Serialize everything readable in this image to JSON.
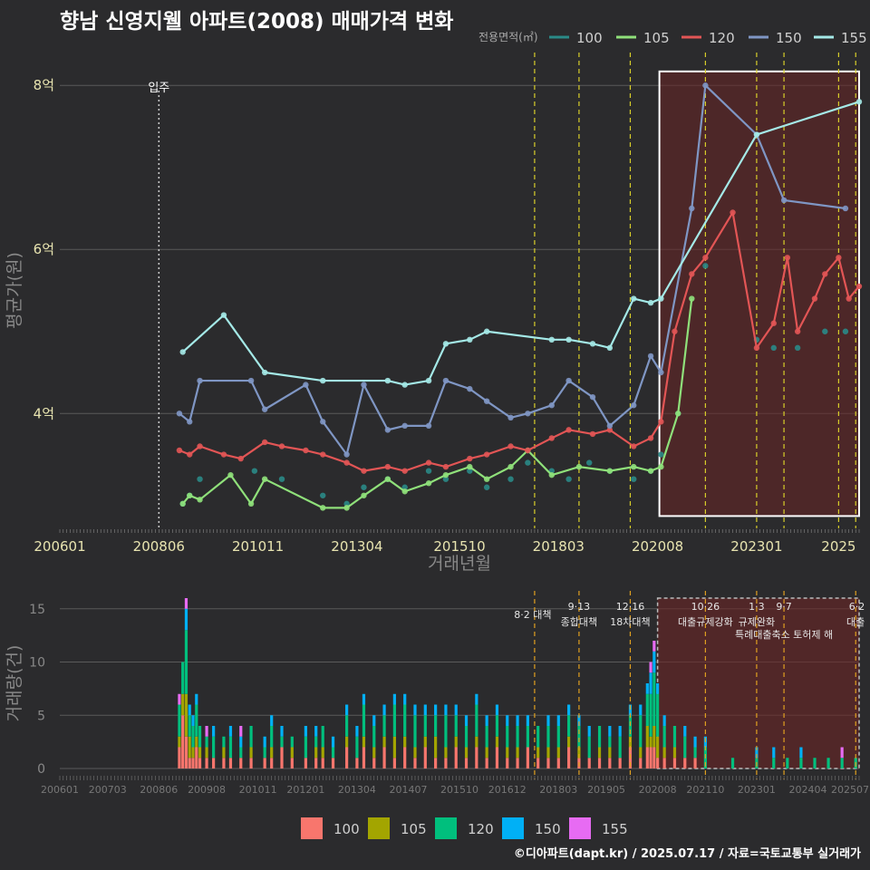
{
  "title": "향남 신영지웰 아파트(2008) 매매가격 변화",
  "source": "©디아파트(dapt.kr) / 2025.07.17 / 자료=국토교통부 실거래가",
  "colors": {
    "background": "#2b2b2d",
    "grid": "#5a5a5a",
    "policy_line": "#d8cf2a",
    "policy_line_bottom": "#e0a020",
    "highlight_fill": "#6a2424",
    "highlight_border": "#ffffff"
  },
  "chart_data": [
    {
      "type": "line",
      "xlabel": "거래년월",
      "ylabel": "평균가(원)",
      "legend_title": "전용면적(㎡)",
      "legend_position": "top-right",
      "x_ticks": [
        "200601",
        "200806",
        "201011",
        "201304",
        "201510",
        "201803",
        "202008",
        "202301",
        "2025"
      ],
      "y_ticks": [
        "4억",
        "6억",
        "8억"
      ],
      "ylim_eok": [
        2.6,
        8.4
      ],
      "xlim": [
        "2006-01",
        "2025-07"
      ],
      "grid": true,
      "annotation": {
        "label": "입주",
        "date": "2008-06"
      },
      "highlight_range": [
        "2020-08",
        "2025-07"
      ],
      "policy_dates": [
        "2017-08",
        "2018-09",
        "2019-12",
        "2021-10",
        "2023-01",
        "2023-09",
        "2025-01",
        "2025-06"
      ],
      "series": [
        {
          "name": "100",
          "color": "#2a8a87",
          "x": [
            "2009-01",
            "2009-03",
            "2009-06",
            "2010-10",
            "2011-06",
            "2012-06",
            "2013-01",
            "2013-06",
            "2014-01",
            "2014-06",
            "2015-01",
            "2015-06",
            "2016-01",
            "2016-06",
            "2017-01",
            "2017-06",
            "2018-01",
            "2018-06",
            "2018-12",
            "2019-06",
            "2020-01",
            "2020-06",
            "2020-09",
            "2021-02",
            "2021-10",
            "2022-06",
            "2023-01",
            "2023-06",
            "2024-01",
            "2024-09",
            "2025-03"
          ],
          "y": [
            2.9,
            3.0,
            3.2,
            3.3,
            3.2,
            3.0,
            2.9,
            3.1,
            3.2,
            3.1,
            3.3,
            3.2,
            3.3,
            3.1,
            3.2,
            3.4,
            3.3,
            3.2,
            3.4,
            3.3,
            3.2,
            3.3,
            3.5,
            4.0,
            5.8,
            null,
            4.9,
            4.8,
            4.8,
            5.0,
            5.0
          ]
        },
        {
          "name": "105",
          "color": "#8fe07a",
          "x": [
            "2009-01",
            "2009-03",
            "2009-06",
            "2010-03",
            "2010-09",
            "2011-01",
            "2012-06",
            "2013-01",
            "2013-06",
            "2014-01",
            "2014-06",
            "2015-01",
            "2015-06",
            "2016-01",
            "2016-06",
            "2017-01",
            "2017-06",
            "2018-01",
            "2018-09",
            "2019-06",
            "2020-01",
            "2020-06",
            "2020-09",
            "2021-02",
            "2021-06"
          ],
          "y": [
            2.9,
            3.0,
            2.95,
            3.25,
            2.9,
            3.2,
            2.85,
            2.85,
            3.0,
            3.2,
            3.05,
            3.15,
            3.25,
            3.35,
            3.2,
            3.35,
            3.55,
            3.25,
            3.35,
            3.3,
            3.35,
            3.3,
            3.35,
            4.0,
            5.4
          ]
        },
        {
          "name": "120",
          "color": "#e25555",
          "x": [
            "2008-12",
            "2009-03",
            "2009-06",
            "2010-01",
            "2010-06",
            "2011-01",
            "2011-06",
            "2012-01",
            "2012-06",
            "2013-01",
            "2013-06",
            "2014-01",
            "2014-06",
            "2015-01",
            "2015-06",
            "2016-01",
            "2016-06",
            "2017-01",
            "2017-06",
            "2018-01",
            "2018-06",
            "2019-01",
            "2019-06",
            "2020-01",
            "2020-06",
            "2020-09",
            "2021-01",
            "2021-06",
            "2021-10",
            "2022-06",
            "2023-01",
            "2023-06",
            "2023-10",
            "2024-01",
            "2024-06",
            "2024-09",
            "2025-01",
            "2025-04",
            "2025-07"
          ],
          "y": [
            3.55,
            3.5,
            3.6,
            3.5,
            3.45,
            3.65,
            3.6,
            3.55,
            3.5,
            3.4,
            3.3,
            3.35,
            3.3,
            3.4,
            3.35,
            3.45,
            3.5,
            3.6,
            3.55,
            3.7,
            3.8,
            3.75,
            3.8,
            3.6,
            3.7,
            3.9,
            5.0,
            5.7,
            5.9,
            6.45,
            4.8,
            5.1,
            5.9,
            5.0,
            5.4,
            5.7,
            5.9,
            5.4,
            5.55
          ]
        },
        {
          "name": "150",
          "color": "#7f96c4",
          "x": [
            "2008-12",
            "2009-03",
            "2009-06",
            "2010-09",
            "2011-01",
            "2012-01",
            "2012-06",
            "2013-01",
            "2013-06",
            "2014-01",
            "2014-06",
            "2015-01",
            "2015-06",
            "2016-01",
            "2016-06",
            "2017-01",
            "2017-06",
            "2018-01",
            "2018-06",
            "2019-01",
            "2019-06",
            "2020-01",
            "2020-06",
            "2020-09",
            "2021-06",
            "2021-10",
            "2023-01",
            "2023-09",
            "2025-03"
          ],
          "y": [
            4.0,
            3.9,
            4.4,
            4.4,
            4.05,
            4.35,
            3.9,
            3.5,
            4.35,
            3.8,
            3.85,
            3.85,
            4.4,
            4.3,
            4.15,
            3.95,
            4.0,
            4.1,
            4.4,
            4.2,
            3.85,
            4.1,
            4.7,
            4.5,
            6.5,
            8.0,
            7.4,
            6.6,
            6.5
          ]
        },
        {
          "name": "155",
          "color": "#a4e9e7",
          "x": [
            "2009-01",
            "2010-01",
            "2011-01",
            "2012-06",
            "2014-01",
            "2014-06",
            "2015-01",
            "2015-06",
            "2016-01",
            "2016-06",
            "2018-01",
            "2018-06",
            "2019-01",
            "2019-06",
            "2020-01",
            "2020-06",
            "2020-09",
            "2023-01",
            "2025-07"
          ],
          "y": [
            4.75,
            5.2,
            4.5,
            4.4,
            4.4,
            4.35,
            4.4,
            4.85,
            4.9,
            5.0,
            4.9,
            4.9,
            4.85,
            4.8,
            5.4,
            5.35,
            5.4,
            7.4,
            7.8
          ]
        }
      ]
    },
    {
      "type": "bar",
      "ylabel": "거래량(건)",
      "ylim": [
        0,
        16
      ],
      "y_ticks": [
        "0",
        "5",
        "10",
        "15"
      ],
      "x_ticks": [
        "200601",
        "200703",
        "200806",
        "200908",
        "201011",
        "201201",
        "201304",
        "201407",
        "201510",
        "201612",
        "201803",
        "201905",
        "202008",
        "202110",
        "202301",
        "202404",
        "202507"
      ],
      "legend_position": "bottom",
      "legend": [
        "100",
        "105",
        "120",
        "150",
        "155"
      ],
      "legend_colors": [
        "#f8766d",
        "#a3a500",
        "#00bf7d",
        "#00b0f6",
        "#e76bf3"
      ],
      "policies": [
        {
          "date": "2017-08",
          "label": "8·2 대책"
        },
        {
          "date": "2018-09",
          "label": "9·13",
          "label2": "종합대책"
        },
        {
          "date": "2019-12",
          "label": "12·16",
          "label2": "18차대책"
        },
        {
          "date": "2021-10",
          "label": "10·26",
          "label2": "대출규제강화"
        },
        {
          "date": "2023-01",
          "label": "1·3",
          "label2": "규제완화"
        },
        {
          "date": "2023-09",
          "label": "9·7",
          "label2": "특례대출축소 토허제 해"
        },
        {
          "date": "2025-06",
          "label": "6·2",
          "label2": "대출"
        }
      ],
      "highlight_range": [
        "2020-08",
        "2025-07"
      ],
      "months": [
        "2008-12",
        "2009-01",
        "2009-02",
        "2009-03",
        "2009-04",
        "2009-05",
        "2009-06",
        "2009-08",
        "2009-10",
        "2010-01",
        "2010-03",
        "2010-06",
        "2010-09",
        "2011-01",
        "2011-03",
        "2011-06",
        "2011-09",
        "2012-01",
        "2012-04",
        "2012-06",
        "2012-09",
        "2013-01",
        "2013-04",
        "2013-06",
        "2013-09",
        "2013-12",
        "2014-03",
        "2014-06",
        "2014-09",
        "2014-12",
        "2015-03",
        "2015-06",
        "2015-09",
        "2015-12",
        "2016-03",
        "2016-06",
        "2016-09",
        "2016-12",
        "2017-03",
        "2017-06",
        "2017-09",
        "2017-12",
        "2018-03",
        "2018-06",
        "2018-09",
        "2018-12",
        "2019-03",
        "2019-06",
        "2019-09",
        "2019-12",
        "2020-03",
        "2020-05",
        "2020-06",
        "2020-07",
        "2020-08",
        "2020-10",
        "2021-01",
        "2021-04",
        "2021-07",
        "2021-10",
        "2022-06",
        "2023-01",
        "2023-06",
        "2023-10",
        "2024-02",
        "2024-06",
        "2024-10",
        "2025-02",
        "2025-06"
      ],
      "stacks": [
        [
          2,
          1,
          3,
          0,
          1
        ],
        [
          5,
          2,
          3,
          0,
          0
        ],
        [
          3,
          4,
          6,
          2,
          1
        ],
        [
          1,
          2,
          2,
          1,
          0
        ],
        [
          1,
          1,
          2,
          1,
          0
        ],
        [
          2,
          1,
          3,
          1,
          0
        ],
        [
          1,
          1,
          2,
          0,
          0
        ],
        [
          1,
          1,
          1,
          0,
          1
        ],
        [
          1,
          0,
          2,
          1,
          0
        ],
        [
          1,
          1,
          1,
          0,
          0
        ],
        [
          1,
          0,
          2,
          1,
          0
        ],
        [
          1,
          0,
          1,
          1,
          1
        ],
        [
          1,
          1,
          2,
          0,
          0
        ],
        [
          1,
          0,
          1,
          1,
          0
        ],
        [
          1,
          1,
          2,
          1,
          0
        ],
        [
          2,
          0,
          1,
          1,
          0
        ],
        [
          1,
          1,
          1,
          0,
          0
        ],
        [
          1,
          0,
          2,
          1,
          0
        ],
        [
          1,
          1,
          1,
          1,
          0
        ],
        [
          1,
          1,
          2,
          0,
          0
        ],
        [
          1,
          0,
          1,
          1,
          0
        ],
        [
          2,
          1,
          2,
          1,
          0
        ],
        [
          1,
          0,
          2,
          1,
          0
        ],
        [
          2,
          1,
          3,
          1,
          0
        ],
        [
          1,
          1,
          2,
          1,
          0
        ],
        [
          2,
          1,
          2,
          1,
          0
        ],
        [
          1,
          2,
          3,
          1,
          0
        ],
        [
          2,
          1,
          3,
          1,
          0
        ],
        [
          1,
          1,
          3,
          1,
          0
        ],
        [
          2,
          1,
          2,
          1,
          0
        ],
        [
          1,
          2,
          2,
          1,
          0
        ],
        [
          1,
          1,
          3,
          1,
          0
        ],
        [
          2,
          1,
          2,
          1,
          0
        ],
        [
          1,
          1,
          2,
          1,
          0
        ],
        [
          2,
          1,
          3,
          1,
          0
        ],
        [
          1,
          1,
          2,
          1,
          0
        ],
        [
          2,
          1,
          2,
          1,
          0
        ],
        [
          1,
          1,
          2,
          1,
          0
        ],
        [
          1,
          1,
          2,
          1,
          0
        ],
        [
          2,
          0,
          2,
          1,
          0
        ],
        [
          1,
          1,
          2,
          0,
          0
        ],
        [
          1,
          1,
          2,
          1,
          0
        ],
        [
          1,
          1,
          2,
          1,
          0
        ],
        [
          2,
          1,
          2,
          1,
          0
        ],
        [
          1,
          1,
          2,
          1,
          0
        ],
        [
          1,
          0,
          2,
          1,
          0
        ],
        [
          1,
          1,
          2,
          0,
          0
        ],
        [
          1,
          1,
          1,
          1,
          0
        ],
        [
          1,
          0,
          2,
          1,
          0
        ],
        [
          2,
          1,
          2,
          1,
          0
        ],
        [
          1,
          1,
          3,
          1,
          0
        ],
        [
          2,
          2,
          3,
          1,
          0
        ],
        [
          2,
          1,
          4,
          2,
          1
        ],
        [
          2,
          2,
          5,
          2,
          1
        ],
        [
          1,
          2,
          4,
          1,
          0
        ],
        [
          1,
          1,
          2,
          1,
          0
        ],
        [
          1,
          1,
          2,
          0,
          0
        ],
        [
          1,
          0,
          2,
          1,
          0
        ],
        [
          1,
          0,
          1,
          1,
          0
        ],
        [
          0,
          0,
          2,
          1,
          0
        ],
        [
          0,
          0,
          1,
          0,
          0
        ],
        [
          0,
          0,
          1,
          1,
          0
        ],
        [
          0,
          0,
          1,
          1,
          0
        ],
        [
          0,
          0,
          1,
          0,
          0
        ],
        [
          0,
          0,
          1,
          1,
          0
        ],
        [
          0,
          0,
          1,
          0,
          0
        ],
        [
          0,
          0,
          1,
          0,
          0
        ],
        [
          0,
          0,
          1,
          0,
          1
        ],
        [
          0,
          0,
          1,
          0,
          0
        ]
      ]
    }
  ]
}
